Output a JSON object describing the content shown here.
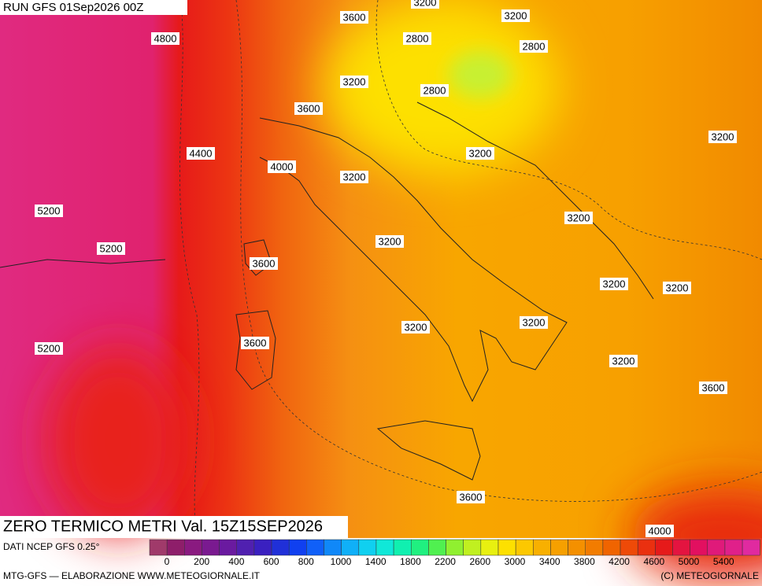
{
  "header": "RUN GFS 01Sep2026 00Z",
  "contour_labels": [
    "3600",
    "3200",
    "3200",
    "4800",
    "2800",
    "2800",
    "3200",
    "2800",
    "3600",
    "3200",
    "4400",
    "3200",
    "4000",
    "3200",
    "5200",
    "3200",
    "3200",
    "5200",
    "3600",
    "3200",
    "3200",
    "3200",
    "3200",
    "3600",
    "5200",
    "3200",
    "3600",
    "3600",
    "4000"
  ],
  "title": "ZERO TERMICO METRI Val. 15Z15SEP2026",
  "source": "DATI NCEP GFS 0.25°",
  "legend": {
    "ticks": [
      0,
      200,
      400,
      600,
      800,
      1000,
      1400,
      1800,
      2200,
      2600,
      3000,
      3400,
      3800,
      4200,
      4600,
      5000,
      5400
    ]
  },
  "footer": {
    "left": "MTG-GFS — ELABORAZIONE WWW.METEOGIORNALE.IT",
    "right": "(C) METEOGIORNALE"
  }
}
